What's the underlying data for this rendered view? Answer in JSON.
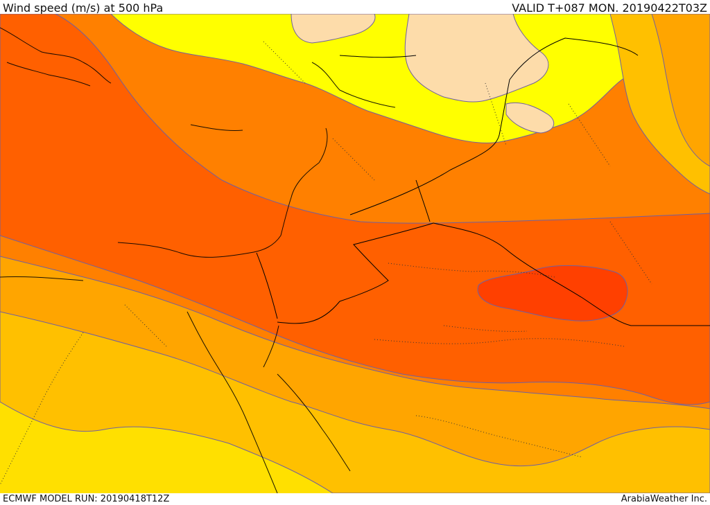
{
  "header": {
    "title": "Wind speed (m/s) at 500 hPa",
    "valid_time": "VALID T+087 MON. 20190422T03Z"
  },
  "footer": {
    "model_run": "ECMWF MODEL RUN: 20190418T12Z",
    "credit": "ArabiaWeather Inc."
  },
  "map": {
    "colors": {
      "band_lightest": "#fddcaa",
      "band_yellow": "#ffff00",
      "band_gold": "#ffe000",
      "band_yellow_orange": "#ffc000",
      "band_orange": "#ffa500",
      "band_dark_orange": "#ff8000",
      "band_red_orange": "#ff6000",
      "band_peak": "#ff4000",
      "contour_line": "#7060a0",
      "border_line": "#000000"
    }
  }
}
